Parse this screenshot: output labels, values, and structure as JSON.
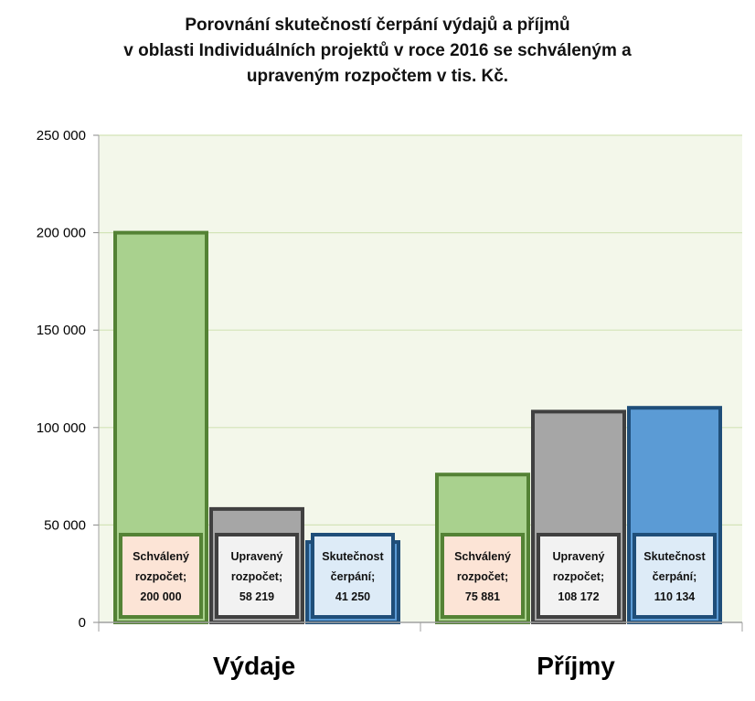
{
  "chart_data": {
    "type": "bar",
    "title_lines": [
      "Porovnání skutečností čerpání výdajů a příjmů",
      "v oblasti Individuálních projektů v roce 2016 se schváleným a",
      "upraveným rozpočtem v tis. Kč."
    ],
    "categories": [
      "Výdaje",
      "Příjmy"
    ],
    "series": [
      {
        "name": "Schválený rozpočet",
        "label_lines": [
          "Schválený",
          "rozpočet;"
        ],
        "values": [
          200000,
          75881
        ],
        "value_labels": [
          "200 000",
          "75 881"
        ],
        "fill": "#a9d18e",
        "stroke": "#548235",
        "label_bg": "#fce4d6"
      },
      {
        "name": "Upravený rozpočet",
        "label_lines": [
          "Upravený",
          "rozpočet;"
        ],
        "values": [
          58219,
          108172
        ],
        "value_labels": [
          "58 219",
          "108 172"
        ],
        "fill": "#a6a6a6",
        "stroke": "#404040",
        "label_bg": "#f2f2f2"
      },
      {
        "name": "Skutečnost čerpání",
        "label_lines": [
          "Skutečnost",
          "čerpání;"
        ],
        "values": [
          41250,
          110134
        ],
        "value_labels": [
          "41 250",
          "110 134"
        ],
        "fill": "#5b9bd5",
        "stroke": "#1f4e79",
        "label_bg": "#ddebf7"
      }
    ],
    "ylim": [
      0,
      250000
    ],
    "yticks": [
      0,
      50000,
      100000,
      150000,
      200000,
      250000
    ],
    "ytick_labels": [
      "0",
      "50 000",
      "100 000",
      "150 000",
      "200 000",
      "250 000"
    ],
    "grid": true,
    "plot_bg": "#f3f7ea",
    "grid_color": "#d3e4b8"
  }
}
